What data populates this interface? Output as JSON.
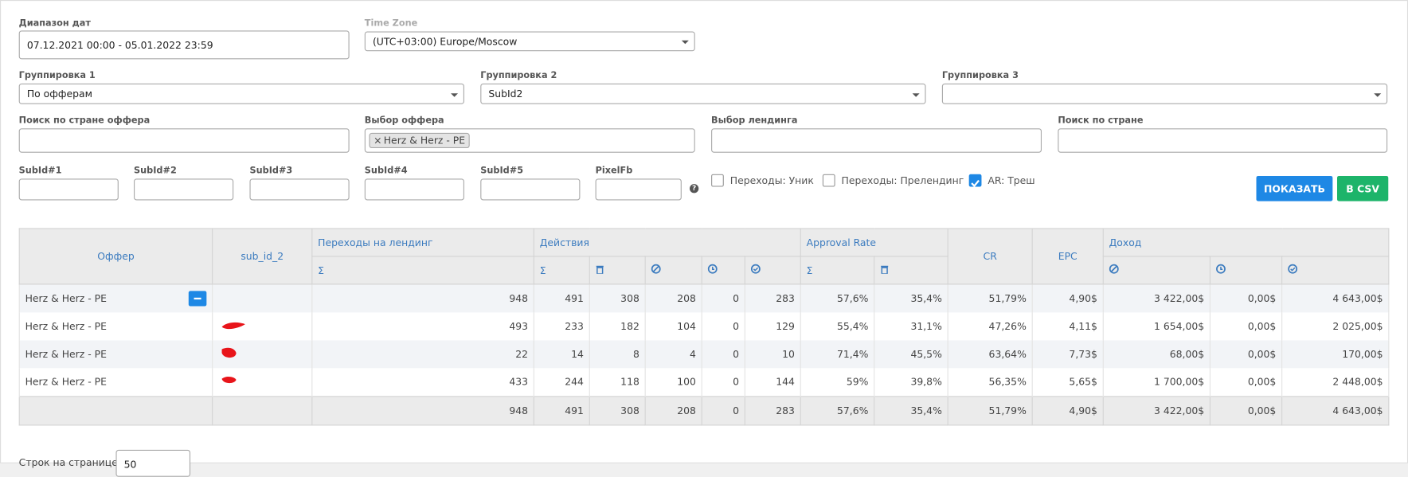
{
  "filters": {
    "date_range": {
      "label": "Диапазон дат",
      "value": "07.12.2021 00:00 - 05.01.2022 23:59"
    },
    "time_zone": {
      "label": "Time Zone",
      "value": "(UTC+03:00) Europe/Moscow"
    },
    "group1": {
      "label": "Группировка 1",
      "value": "По офферам"
    },
    "group2": {
      "label": "Группировка 2",
      "value": "SubId2"
    },
    "group3": {
      "label": "Группировка 3"
    },
    "offer_country": {
      "label": "Поиск по стране оффера"
    },
    "offer": {
      "label": "Выбор оффера",
      "tag": "Herz & Herz - PE",
      "tag_remove": "×"
    },
    "landing": {
      "label": "Выбор лендинга"
    },
    "country": {
      "label": "Поиск по стране"
    },
    "subids": [
      "SubId#1",
      "SubId#2",
      "SubId#3",
      "SubId#4",
      "SubId#5",
      "PixelFb"
    ],
    "checkboxes": [
      {
        "label": "Переходы: Уник",
        "checked": false
      },
      {
        "label": "Переходы: Прелендинг",
        "checked": false
      },
      {
        "label": "AR: Треш",
        "checked": true
      }
    ],
    "buttons": [
      "ПОКАЗАТЬ",
      "В CSV"
    ]
  },
  "table": {
    "headers": {
      "offer": "Оффер",
      "sub": "sub_id_2",
      "landing": "Переходы на лендинг",
      "actions": "Действия",
      "approval": "Approval Rate",
      "cr": "CR",
      "epc": "EPC",
      "income": "Доход",
      "sigma": "Σ"
    },
    "rows": [
      [
        "Herz & Herz - PE",
        "948",
        "491",
        "308",
        "208",
        "0",
        "283",
        "57,6%",
        "35,4%",
        "51,79%",
        "4,90$",
        "3 422,00$",
        "0,00$",
        "4 643,00$"
      ],
      [
        "Herz & Herz - PE",
        "493",
        "233",
        "182",
        "104",
        "0",
        "129",
        "55,4%",
        "31,1%",
        "47,26%",
        "4,11$",
        "1 654,00$",
        "0,00$",
        "2 025,00$"
      ],
      [
        "Herz & Herz - PE",
        "22",
        "14",
        "8",
        "4",
        "0",
        "10",
        "71,4%",
        "45,5%",
        "63,64%",
        "7,73$",
        "68,00$",
        "0,00$",
        "170,00$"
      ],
      [
        "Herz & Herz - PE",
        "433",
        "244",
        "118",
        "100",
        "0",
        "144",
        "59%",
        "39,8%",
        "56,35%",
        "5,65$",
        "1 700,00$",
        "0,00$",
        "2 448,00$"
      ]
    ],
    "totals": [
      "948",
      "491",
      "308",
      "208",
      "0",
      "283",
      "57,6%",
      "35,4%",
      "51,79%",
      "4,90$",
      "3 422,00$",
      "0,00$",
      "4 643,00$"
    ]
  },
  "footer": {
    "rows_per_page": "Строк на странице",
    "value": "50"
  }
}
